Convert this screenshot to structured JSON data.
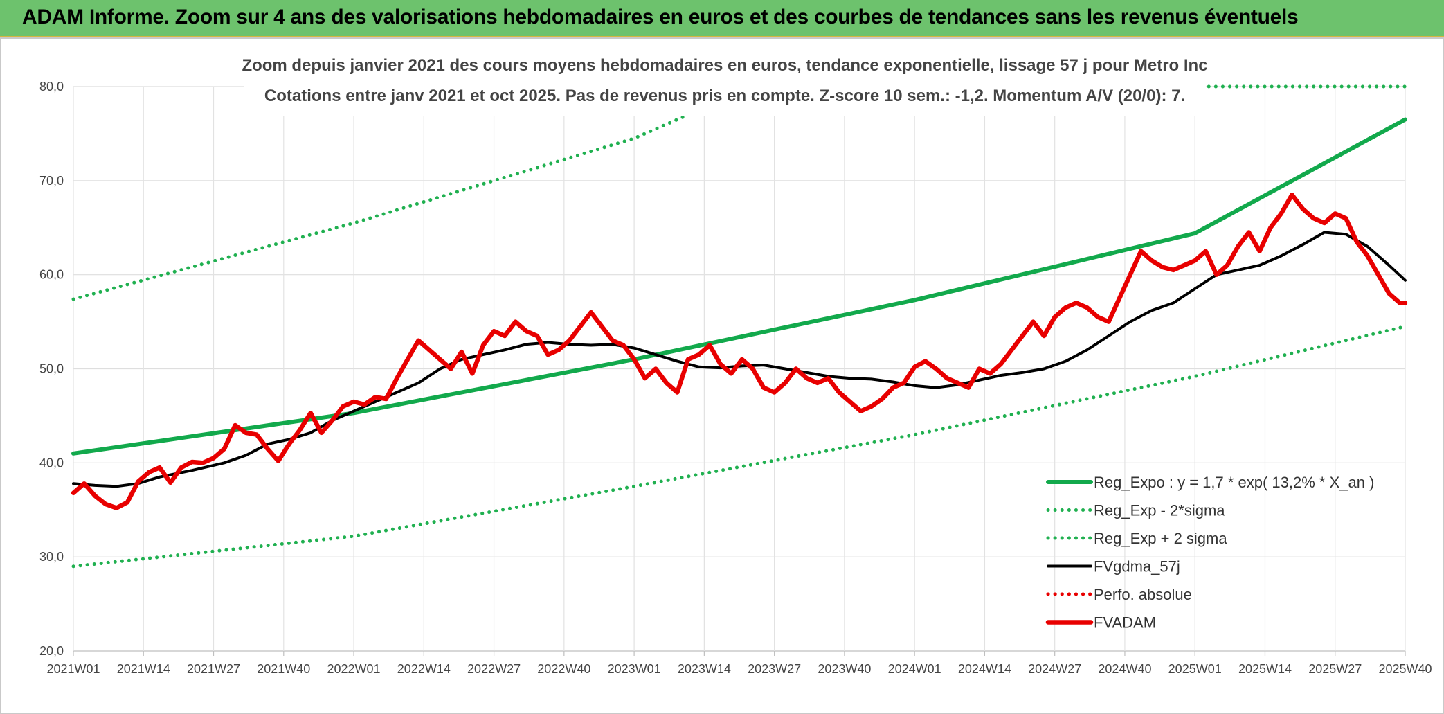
{
  "header": {
    "title": "ADAM Informe. Zoom sur 4 ans des valorisations hebdomadaires en euros et des courbes de tendances sans les revenus éventuels"
  },
  "colors": {
    "header_bg": "#6dc26d",
    "trend": "#12a94c",
    "band": "#20b050",
    "smooth": "#000000",
    "price": "#e80000",
    "perf": "#e80000"
  },
  "chart_data": {
    "type": "line",
    "title": "Zoom depuis janvier 2021 des cours moyens hebdomadaires en euros, tendance exponentielle, lissage 57 j pour Metro Inc",
    "subtitle": "Cotations entre janv 2021 et oct 2025. Pas de revenus pris en compte. Z-score 10 sem.: -1,2. Momentum A/V (20/0): 7.",
    "x_ticks": [
      "2021W01",
      "2021W14",
      "2021W27",
      "2021W40",
      "2022W01",
      "2022W14",
      "2022W27",
      "2022W40",
      "2023W01",
      "2023W14",
      "2023W27",
      "2023W40",
      "2024W01",
      "2024W14",
      "2024W27",
      "2024W40",
      "2025W01",
      "2025W14",
      "2025W27",
      "2025W40"
    ],
    "ylim": [
      20,
      80
    ],
    "y_ticks": [
      "20,0",
      "30,0",
      "40,0",
      "50,0",
      "60,0",
      "70,0",
      "80,0"
    ],
    "grid": true,
    "legend_position": "bottom-right",
    "x_range_weeks": [
      0,
      247
    ],
    "series": [
      {
        "name": "Reg_Expo : y = 1,7 * exp( 13,2% *  X_an )",
        "style": "solid-thick",
        "color": "#12a94c",
        "points": [
          [
            0,
            41.0
          ],
          [
            52,
            45.3
          ],
          [
            104,
            51.0
          ],
          [
            156,
            57.3
          ],
          [
            208,
            64.4
          ],
          [
            247,
            76.5
          ]
        ]
      },
      {
        "name": "Reg_Exp - 2*sigma",
        "style": "dotted",
        "color": "#20b050",
        "points": [
          [
            0,
            29.0
          ],
          [
            52,
            32.2
          ],
          [
            104,
            37.5
          ],
          [
            156,
            43.0
          ],
          [
            208,
            49.2
          ],
          [
            247,
            54.5
          ]
        ]
      },
      {
        "name": "Reg_Exp + 2 sigma",
        "style": "dotted",
        "color": "#20b050",
        "points": [
          [
            0,
            57.4
          ],
          [
            52,
            65.5
          ],
          [
            104,
            74.5
          ],
          [
            118,
            78.0
          ],
          [
            130,
            80.0
          ],
          [
            247,
            80.0
          ]
        ]
      },
      {
        "name": "FVgdma_57j",
        "style": "solid",
        "color": "#000000",
        "points": [
          [
            0,
            37.8
          ],
          [
            4,
            37.6
          ],
          [
            8,
            37.5
          ],
          [
            12,
            37.8
          ],
          [
            16,
            38.5
          ],
          [
            22,
            39.2
          ],
          [
            28,
            40.0
          ],
          [
            32,
            40.8
          ],
          [
            36,
            42.0
          ],
          [
            40,
            42.5
          ],
          [
            44,
            43.2
          ],
          [
            48,
            44.5
          ],
          [
            52,
            45.5
          ],
          [
            56,
            46.5
          ],
          [
            60,
            47.5
          ],
          [
            64,
            48.5
          ],
          [
            68,
            50.0
          ],
          [
            72,
            51.0
          ],
          [
            76,
            51.5
          ],
          [
            80,
            52.0
          ],
          [
            84,
            52.6
          ],
          [
            88,
            52.8
          ],
          [
            92,
            52.6
          ],
          [
            96,
            52.5
          ],
          [
            100,
            52.6
          ],
          [
            104,
            52.2
          ],
          [
            108,
            51.5
          ],
          [
            112,
            50.8
          ],
          [
            116,
            50.2
          ],
          [
            120,
            50.1
          ],
          [
            124,
            50.3
          ],
          [
            128,
            50.4
          ],
          [
            132,
            50.0
          ],
          [
            136,
            49.6
          ],
          [
            140,
            49.2
          ],
          [
            144,
            49.0
          ],
          [
            148,
            48.9
          ],
          [
            152,
            48.6
          ],
          [
            156,
            48.2
          ],
          [
            160,
            48.0
          ],
          [
            164,
            48.3
          ],
          [
            168,
            48.8
          ],
          [
            172,
            49.3
          ],
          [
            176,
            49.6
          ],
          [
            180,
            50.0
          ],
          [
            184,
            50.8
          ],
          [
            188,
            52.0
          ],
          [
            192,
            53.5
          ],
          [
            196,
            55.0
          ],
          [
            200,
            56.2
          ],
          [
            204,
            57.0
          ],
          [
            208,
            58.5
          ],
          [
            212,
            60.0
          ],
          [
            216,
            60.5
          ],
          [
            220,
            61.0
          ],
          [
            224,
            62.0
          ],
          [
            228,
            63.2
          ],
          [
            232,
            64.5
          ],
          [
            236,
            64.3
          ],
          [
            240,
            63.0
          ],
          [
            244,
            61.0
          ],
          [
            247,
            59.4
          ]
        ]
      },
      {
        "name": "Perfo. absolue",
        "style": "dotted",
        "color": "#e80000",
        "points": []
      },
      {
        "name": "FVADAM",
        "style": "solid-thick",
        "color": "#e80000",
        "points": [
          [
            0,
            36.8
          ],
          [
            2,
            37.8
          ],
          [
            4,
            36.5
          ],
          [
            6,
            35.6
          ],
          [
            8,
            35.2
          ],
          [
            10,
            35.8
          ],
          [
            12,
            38.0
          ],
          [
            14,
            39.0
          ],
          [
            16,
            39.5
          ],
          [
            18,
            37.9
          ],
          [
            20,
            39.5
          ],
          [
            22,
            40.1
          ],
          [
            24,
            40.0
          ],
          [
            26,
            40.5
          ],
          [
            28,
            41.5
          ],
          [
            30,
            44.0
          ],
          [
            32,
            43.2
          ],
          [
            34,
            43.0
          ],
          [
            36,
            41.5
          ],
          [
            38,
            40.2
          ],
          [
            40,
            42.0
          ],
          [
            42,
            43.5
          ],
          [
            44,
            45.3
          ],
          [
            46,
            43.2
          ],
          [
            48,
            44.5
          ],
          [
            50,
            46.0
          ],
          [
            52,
            46.5
          ],
          [
            54,
            46.2
          ],
          [
            56,
            47.0
          ],
          [
            58,
            46.8
          ],
          [
            60,
            49.0
          ],
          [
            62,
            51.0
          ],
          [
            64,
            53.0
          ],
          [
            66,
            52.0
          ],
          [
            68,
            51.0
          ],
          [
            70,
            50.0
          ],
          [
            72,
            51.8
          ],
          [
            74,
            49.5
          ],
          [
            76,
            52.5
          ],
          [
            78,
            54.0
          ],
          [
            80,
            53.5
          ],
          [
            82,
            55.0
          ],
          [
            84,
            54.0
          ],
          [
            86,
            53.5
          ],
          [
            88,
            51.5
          ],
          [
            90,
            52.0
          ],
          [
            92,
            53.0
          ],
          [
            94,
            54.5
          ],
          [
            96,
            56.0
          ],
          [
            98,
            54.5
          ],
          [
            100,
            53.0
          ],
          [
            102,
            52.5
          ],
          [
            104,
            51.0
          ],
          [
            106,
            49.0
          ],
          [
            108,
            50.0
          ],
          [
            110,
            48.5
          ],
          [
            112,
            47.5
          ],
          [
            114,
            51.0
          ],
          [
            116,
            51.5
          ],
          [
            118,
            52.5
          ],
          [
            120,
            50.5
          ],
          [
            122,
            49.5
          ],
          [
            124,
            51.0
          ],
          [
            126,
            50.0
          ],
          [
            128,
            48.0
          ],
          [
            130,
            47.5
          ],
          [
            132,
            48.5
          ],
          [
            134,
            50.0
          ],
          [
            136,
            49.0
          ],
          [
            138,
            48.5
          ],
          [
            140,
            49.0
          ],
          [
            142,
            47.5
          ],
          [
            144,
            46.5
          ],
          [
            146,
            45.5
          ],
          [
            148,
            46.0
          ],
          [
            150,
            46.8
          ],
          [
            152,
            48.0
          ],
          [
            154,
            48.5
          ],
          [
            156,
            50.2
          ],
          [
            158,
            50.8
          ],
          [
            160,
            50.0
          ],
          [
            162,
            49.0
          ],
          [
            164,
            48.5
          ],
          [
            166,
            48.0
          ],
          [
            168,
            50.0
          ],
          [
            170,
            49.5
          ],
          [
            172,
            50.5
          ],
          [
            174,
            52.0
          ],
          [
            176,
            53.5
          ],
          [
            178,
            55.0
          ],
          [
            180,
            53.5
          ],
          [
            182,
            55.5
          ],
          [
            184,
            56.5
          ],
          [
            186,
            57.0
          ],
          [
            188,
            56.5
          ],
          [
            190,
            55.5
          ],
          [
            192,
            55.0
          ],
          [
            194,
            57.5
          ],
          [
            196,
            60.0
          ],
          [
            198,
            62.5
          ],
          [
            200,
            61.5
          ],
          [
            202,
            60.8
          ],
          [
            204,
            60.5
          ],
          [
            206,
            61.0
          ],
          [
            208,
            61.5
          ],
          [
            210,
            62.5
          ],
          [
            212,
            60.0
          ],
          [
            214,
            61.0
          ],
          [
            216,
            63.0
          ],
          [
            218,
            64.5
          ],
          [
            220,
            62.5
          ],
          [
            222,
            65.0
          ],
          [
            224,
            66.5
          ],
          [
            226,
            68.5
          ],
          [
            228,
            67.0
          ],
          [
            230,
            66.0
          ],
          [
            232,
            65.5
          ],
          [
            234,
            66.5
          ],
          [
            236,
            66.0
          ],
          [
            238,
            63.5
          ],
          [
            240,
            62.0
          ],
          [
            242,
            60.0
          ],
          [
            244,
            58.0
          ],
          [
            246,
            57.0
          ],
          [
            247,
            57.0
          ]
        ]
      }
    ]
  }
}
